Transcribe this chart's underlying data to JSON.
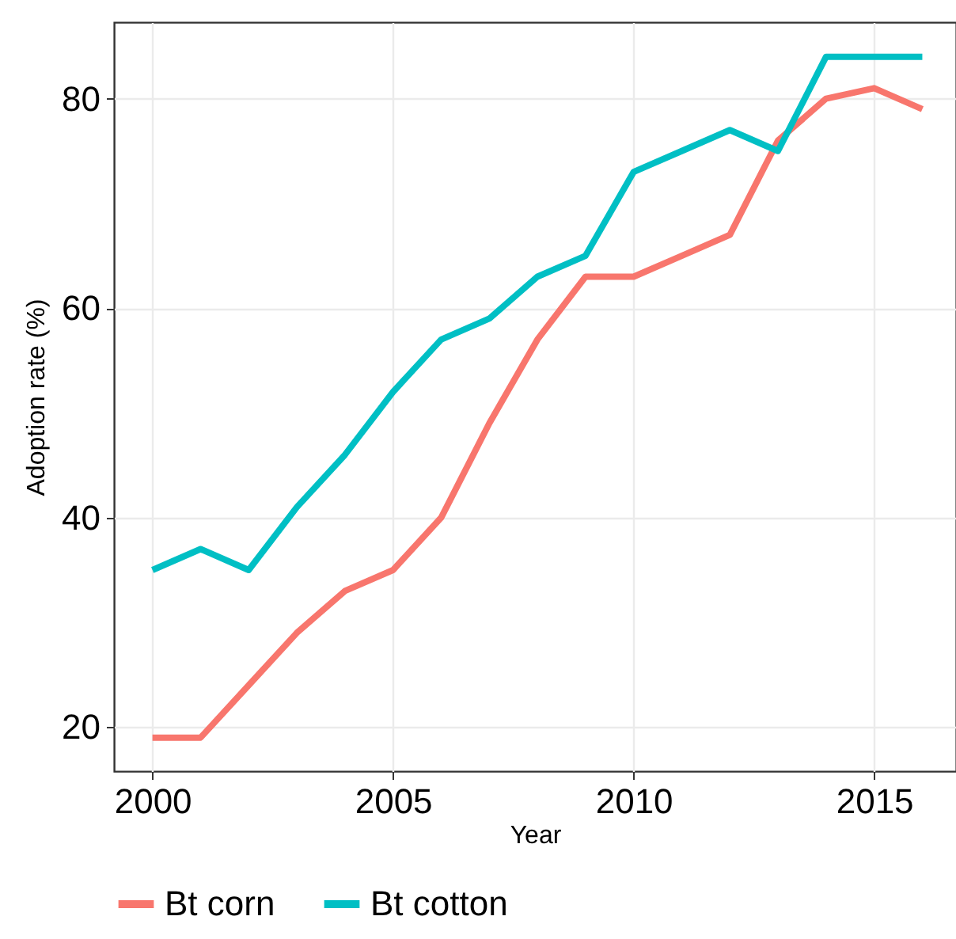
{
  "chart_data": {
    "type": "line",
    "xlabel": "Year",
    "ylabel": "Adoption rate (%)",
    "x": [
      2000,
      2001,
      2002,
      2003,
      2004,
      2005,
      2006,
      2007,
      2008,
      2009,
      2010,
      2011,
      2012,
      2013,
      2014,
      2015,
      2016
    ],
    "series": [
      {
        "name": "Bt corn",
        "color": "#f8766d",
        "values": [
          19,
          19,
          24,
          29,
          33,
          35,
          40,
          49,
          57,
          63,
          63,
          65,
          67,
          76,
          80,
          81,
          79
        ]
      },
      {
        "name": "Bt cotton",
        "color": "#00bfc4",
        "values": [
          35,
          37,
          35,
          41,
          46,
          52,
          57,
          59,
          63,
          65,
          73,
          75,
          77,
          75,
          84,
          84,
          84
        ]
      }
    ],
    "xlim": [
      1999.2,
      2016.7
    ],
    "xticks": [
      2000,
      2005,
      2010,
      2015
    ],
    "ylim": [
      15.8,
      87.3
    ],
    "yticks": [
      20,
      40,
      60,
      80
    ],
    "grid": true,
    "legend": "bottom",
    "marker": "none",
    "line_style": "solid"
  }
}
